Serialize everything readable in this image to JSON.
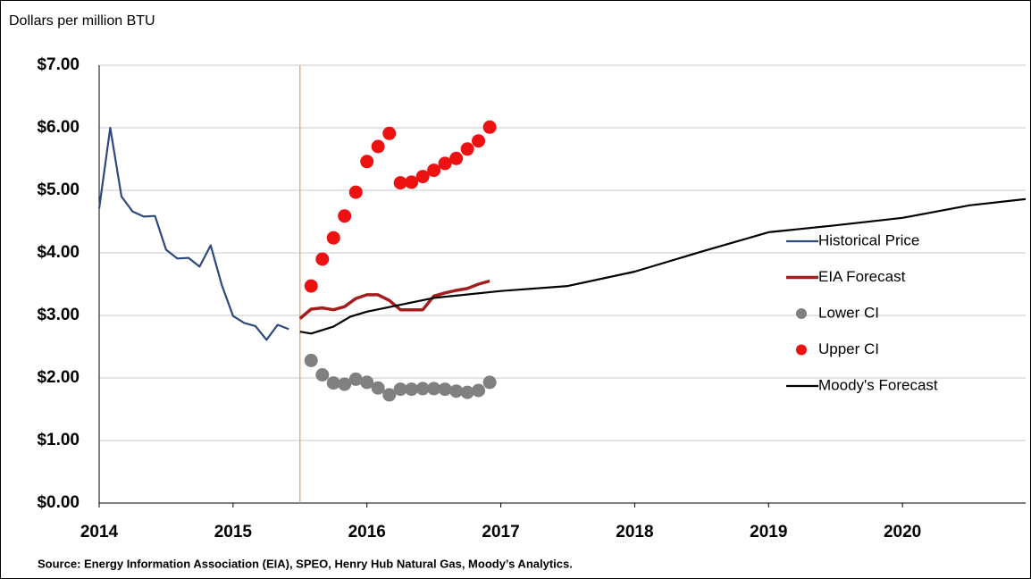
{
  "chart_data": {
    "type": "line",
    "y_axis_label": "Dollars per million BTU",
    "source": "Source: Energy Information Association (EIA), SPEO, Henry Hub Natural Gas, Moody’s Analytics.",
    "xlim": [
      2014,
      2020.92
    ],
    "xticks": [
      2014,
      2015,
      2016,
      2017,
      2018,
      2019,
      2020
    ],
    "ylim": [
      0,
      7
    ],
    "yticks": [
      {
        "value": 0,
        "label": "$0.00"
      },
      {
        "value": 1,
        "label": "$1.00"
      },
      {
        "value": 2,
        "label": "$2.00"
      },
      {
        "value": 3,
        "label": "$3.00"
      },
      {
        "value": 4,
        "label": "$4.00"
      },
      {
        "value": 5,
        "label": "$5.00"
      },
      {
        "value": 6,
        "label": "$6.00"
      },
      {
        "value": 7,
        "label": "$7.00"
      }
    ],
    "grid": true,
    "series": [
      {
        "name": "Historical Price",
        "color": "#2e4a7a",
        "kind": "line",
        "x": [
          2014,
          2014.083,
          2014.167,
          2014.25,
          2014.333,
          2014.417,
          2014.5,
          2014.583,
          2014.667,
          2014.75,
          2014.833,
          2014.917,
          2015,
          2015.083,
          2015.167,
          2015.25,
          2015.333,
          2015.417
        ],
        "values": [
          4.71,
          6.0,
          4.9,
          4.66,
          4.58,
          4.59,
          4.05,
          3.91,
          3.92,
          3.78,
          4.12,
          3.48,
          2.99,
          2.88,
          2.83,
          2.61,
          2.85,
          2.78
        ]
      },
      {
        "name": "EIA Forecast",
        "color": "#a51c1c",
        "kind": "line",
        "x": [
          2015.5,
          2015.583,
          2015.667,
          2015.75,
          2015.833,
          2015.917,
          2016,
          2016.083,
          2016.167,
          2016.25,
          2016.333,
          2016.417,
          2016.5,
          2016.583,
          2016.667,
          2016.75,
          2016.833,
          2016.917
        ],
        "values": [
          2.95,
          3.1,
          3.12,
          3.09,
          3.14,
          3.27,
          3.33,
          3.33,
          3.24,
          3.09,
          3.09,
          3.09,
          3.31,
          3.36,
          3.4,
          3.43,
          3.5,
          3.55
        ]
      },
      {
        "name": "Lower CI",
        "color": "#808080",
        "kind": "scatter",
        "x": [
          2015.583,
          2015.667,
          2015.75,
          2015.833,
          2015.917,
          2016,
          2016.083,
          2016.167,
          2016.25,
          2016.333,
          2016.417,
          2016.5,
          2016.583,
          2016.667,
          2016.75,
          2016.833,
          2016.917
        ],
        "values": [
          2.28,
          2.05,
          1.92,
          1.9,
          1.98,
          1.93,
          1.84,
          1.73,
          1.82,
          1.82,
          1.83,
          1.83,
          1.82,
          1.79,
          1.77,
          1.8,
          1.93
        ]
      },
      {
        "name": "Upper CI",
        "color": "#ee1111",
        "kind": "scatter",
        "x": [
          2015.583,
          2015.667,
          2015.75,
          2015.833,
          2015.917,
          2016,
          2016.083,
          2016.167,
          2016.25,
          2016.333,
          2016.417,
          2016.5,
          2016.583,
          2016.667,
          2016.75,
          2016.833,
          2016.917
        ],
        "values": [
          3.47,
          3.9,
          4.24,
          4.59,
          4.97,
          5.46,
          5.7,
          5.91,
          5.12,
          5.13,
          5.22,
          5.32,
          5.43,
          5.51,
          5.66,
          5.79,
          6.01
        ]
      },
      {
        "name": "Moody's Forecast",
        "color": "#000000",
        "kind": "line",
        "x": [
          2015.5,
          2015.583,
          2015.75,
          2015.875,
          2016,
          2016.5,
          2017,
          2017.5,
          2018,
          2018.5,
          2019,
          2019.5,
          2020,
          2020.5,
          2020.92
        ],
        "values": [
          2.74,
          2.71,
          2.82,
          2.98,
          3.06,
          3.28,
          3.39,
          3.47,
          3.7,
          4.02,
          4.33,
          4.44,
          4.56,
          4.76,
          4.86
        ]
      }
    ]
  }
}
